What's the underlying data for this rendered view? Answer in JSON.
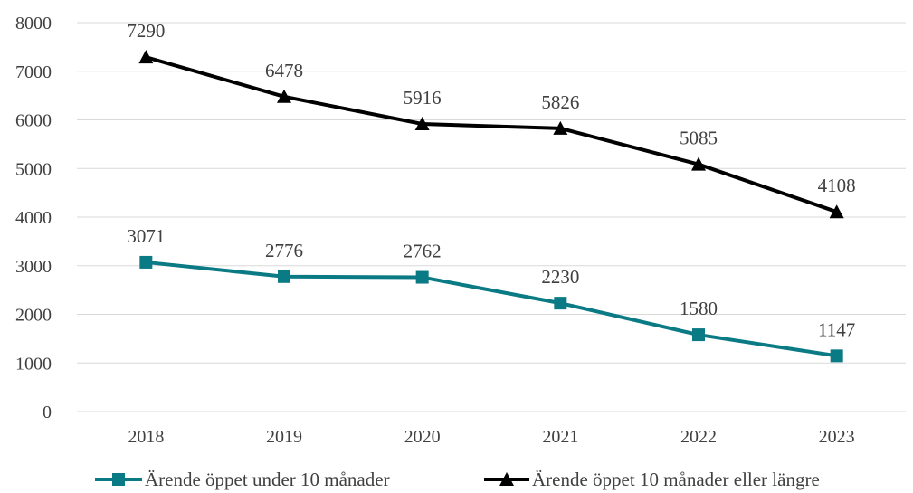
{
  "chart_data": {
    "type": "line",
    "title": "",
    "xlabel": "",
    "ylabel": "",
    "categories": [
      "2018",
      "2019",
      "2020",
      "2021",
      "2022",
      "2023"
    ],
    "ylim": [
      0,
      8000
    ],
    "y_ticks": [
      0,
      1000,
      2000,
      3000,
      4000,
      5000,
      6000,
      7000,
      8000
    ],
    "grid": "horizontal",
    "legend_position": "bottom",
    "series": [
      {
        "name": "Ärende öppet under 10 månader",
        "values": [
          3071,
          2776,
          2762,
          2230,
          1580,
          1147
        ],
        "data_labels": [
          "3071",
          "2776",
          "2762",
          "2230",
          "1580",
          "1147"
        ],
        "color": "#0a7a84",
        "marker": "square"
      },
      {
        "name": "Ärende öppet 10 månader eller längre",
        "values": [
          7290,
          6478,
          5916,
          5826,
          5085,
          4108
        ],
        "data_labels": [
          "7290",
          "6478",
          "5916",
          "5826",
          "5085",
          "4108"
        ],
        "color": "#000000",
        "marker": "triangle"
      }
    ]
  }
}
